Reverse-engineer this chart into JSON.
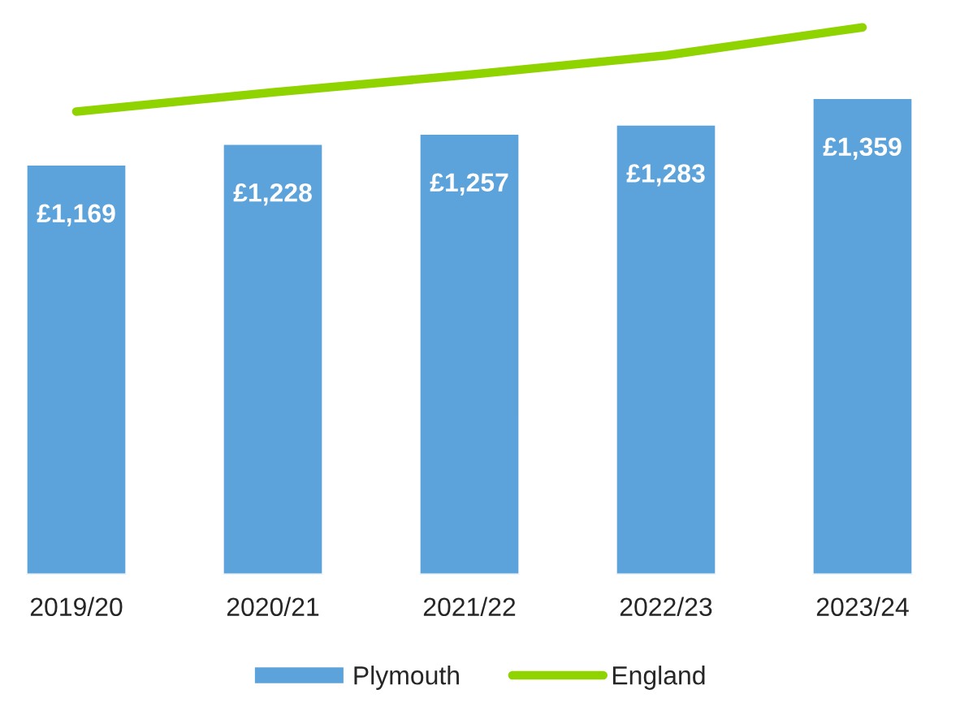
{
  "chart_data": {
    "type": "bar",
    "categories": [
      "2019/20",
      "2020/21",
      "2021/22",
      "2022/23",
      "2023/24"
    ],
    "series": [
      {
        "name": "Plymouth",
        "color": "#5ba3da",
        "values": [
          1169,
          1228,
          1257,
          1283,
          1359
        ],
        "value_labels": [
          "£1,169",
          "£1,228",
          "£1,257",
          "£1,283",
          "£1,359"
        ]
      },
      {
        "name": "England",
        "type": "line",
        "color": "#8fd400",
        "values": [
          1320,
          1375,
          1425,
          1480,
          1560
        ]
      }
    ],
    "tick_labels": "x",
    "legend": "bottom"
  }
}
